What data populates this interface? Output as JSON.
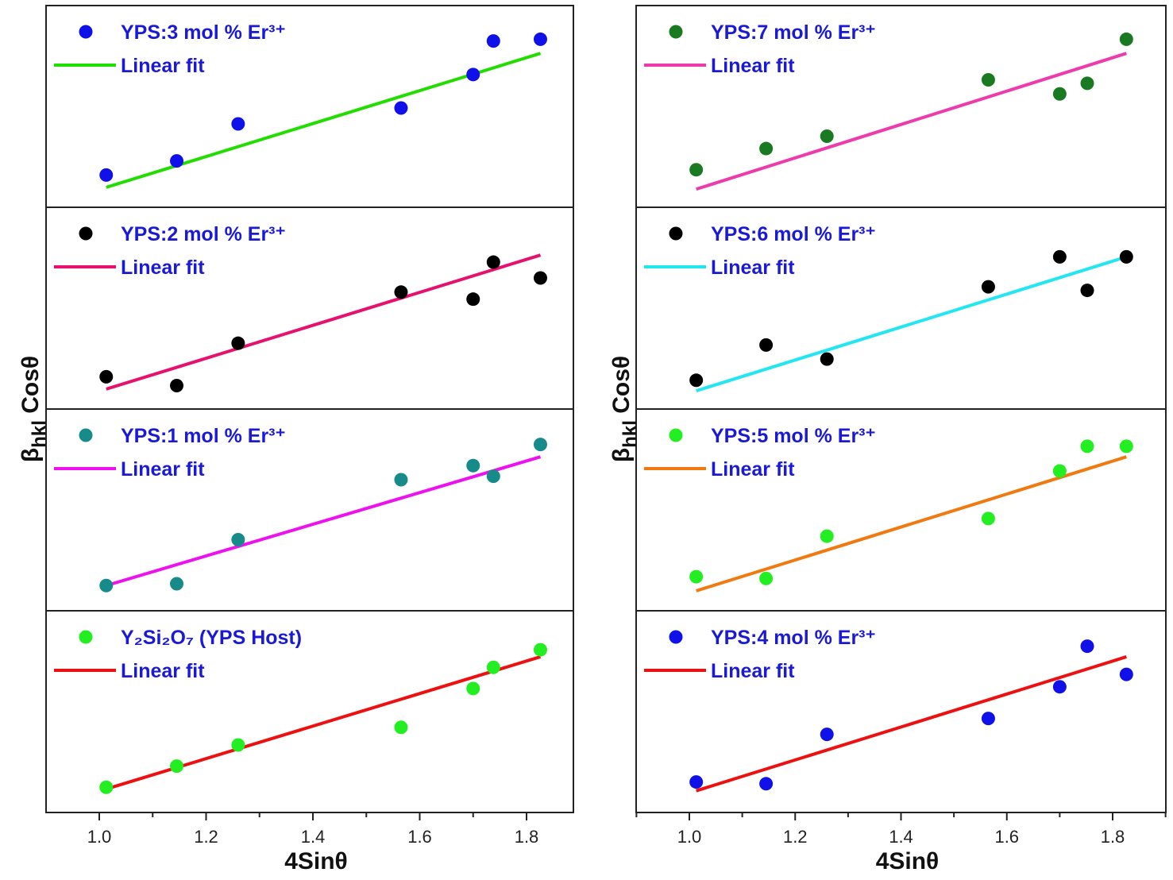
{
  "chart_data": [
    {
      "type": "scatter",
      "column": "left",
      "row": 0,
      "legend_position": "top-left",
      "series": [
        {
          "name": "YPS:3 mol % Er³⁺",
          "kind": "points",
          "color": "#1010e8",
          "x": [
            1.013,
            1.145,
            1.26,
            1.565,
            1.7,
            1.738,
            1.826
          ],
          "y": [
            0.12,
            0.2,
            0.41,
            0.5,
            0.69,
            0.88,
            0.89
          ]
        },
        {
          "name": "Linear fit",
          "kind": "line",
          "color": "#22dd00",
          "x": [
            1.013,
            1.826
          ],
          "y": [
            0.05,
            0.81
          ]
        }
      ],
      "ylim": [
        0,
        1
      ],
      "xlim": [
        0.9,
        1.9
      ]
    },
    {
      "type": "scatter",
      "column": "left",
      "row": 1,
      "legend_position": "top-left",
      "series": [
        {
          "name": "YPS:2 mol % Er³⁺",
          "kind": "points",
          "color": "#000000",
          "x": [
            1.013,
            1.145,
            1.26,
            1.565,
            1.7,
            1.738,
            1.826
          ],
          "y": [
            0.12,
            0.07,
            0.31,
            0.6,
            0.56,
            0.77,
            0.68
          ]
        },
        {
          "name": "Linear fit",
          "kind": "line",
          "color": "#e8106e",
          "x": [
            1.013,
            1.826
          ],
          "y": [
            0.05,
            0.81
          ]
        }
      ],
      "ylim": [
        0,
        1
      ],
      "xlim": [
        0.9,
        1.9
      ]
    },
    {
      "type": "scatter",
      "column": "left",
      "row": 2,
      "legend_position": "top-left",
      "series": [
        {
          "name": "YPS:1 mol % Er³⁺",
          "kind": "points",
          "color": "#178a8a",
          "x": [
            1.013,
            1.145,
            1.26,
            1.565,
            1.7,
            1.738,
            1.826
          ],
          "y": [
            0.08,
            0.09,
            0.34,
            0.68,
            0.76,
            0.7,
            0.88
          ]
        },
        {
          "name": "Linear fit",
          "kind": "line",
          "color": "#ee10ee",
          "x": [
            1.013,
            1.826
          ],
          "y": [
            0.08,
            0.81
          ]
        }
      ],
      "ylim": [
        0,
        1
      ],
      "xlim": [
        0.9,
        1.9
      ]
    },
    {
      "type": "scatter",
      "column": "left",
      "row": 3,
      "legend_position": "top-left",
      "series": [
        {
          "name": "Y₂Si₂O₇ (YPS Host)",
          "kind": "points",
          "color": "#22ee22",
          "x": [
            1.013,
            1.145,
            1.26,
            1.565,
            1.7,
            1.738,
            1.826
          ],
          "y": [
            0.08,
            0.2,
            0.32,
            0.42,
            0.64,
            0.76,
            0.86
          ]
        },
        {
          "name": "Linear fit",
          "kind": "line",
          "color": "#ee1010",
          "x": [
            1.013,
            1.826
          ],
          "y": [
            0.07,
            0.82
          ]
        }
      ],
      "ylim": [
        0,
        1
      ],
      "xlim": [
        0.9,
        1.9
      ]
    },
    {
      "type": "scatter",
      "column": "right",
      "row": 0,
      "legend_position": "top-left",
      "series": [
        {
          "name": "YPS:7 mol % Er³⁺",
          "kind": "points",
          "color": "#1a7a22",
          "x": [
            1.013,
            1.145,
            1.26,
            1.565,
            1.7,
            1.752,
            1.826
          ],
          "y": [
            0.15,
            0.27,
            0.34,
            0.66,
            0.58,
            0.64,
            0.89
          ]
        },
        {
          "name": "Linear fit",
          "kind": "line",
          "color": "#ee3aaa",
          "x": [
            1.013,
            1.826
          ],
          "y": [
            0.04,
            0.81
          ]
        }
      ],
      "ylim": [
        0,
        1
      ],
      "xlim": [
        0.9,
        1.9
      ]
    },
    {
      "type": "scatter",
      "column": "right",
      "row": 1,
      "legend_position": "top-left",
      "series": [
        {
          "name": "YPS:6 mol % Er³⁺",
          "kind": "points",
          "color": "#000000",
          "x": [
            1.013,
            1.145,
            1.26,
            1.565,
            1.7,
            1.752,
            1.826
          ],
          "y": [
            0.1,
            0.3,
            0.22,
            0.63,
            0.8,
            0.61,
            0.8
          ]
        },
        {
          "name": "Linear fit",
          "kind": "line",
          "color": "#22e6f0",
          "x": [
            1.013,
            1.826
          ],
          "y": [
            0.04,
            0.8
          ]
        }
      ],
      "ylim": [
        0,
        1
      ],
      "xlim": [
        0.9,
        1.9
      ]
    },
    {
      "type": "scatter",
      "column": "right",
      "row": 2,
      "legend_position": "top-left",
      "series": [
        {
          "name": "YPS:5 mol % Er³⁺",
          "kind": "points",
          "color": "#22ee22",
          "x": [
            1.013,
            1.145,
            1.26,
            1.565,
            1.7,
            1.752,
            1.826
          ],
          "y": [
            0.13,
            0.12,
            0.36,
            0.46,
            0.73,
            0.87,
            0.87
          ]
        },
        {
          "name": "Linear fit",
          "kind": "line",
          "color": "#f07a10",
          "x": [
            1.013,
            1.826
          ],
          "y": [
            0.05,
            0.81
          ]
        }
      ],
      "ylim": [
        0,
        1
      ],
      "xlim": [
        0.9,
        1.9
      ]
    },
    {
      "type": "scatter",
      "column": "right",
      "row": 3,
      "legend_position": "top-left",
      "series": [
        {
          "name": "YPS:4 mol % Er³⁺",
          "kind": "points",
          "color": "#1010e8",
          "x": [
            1.013,
            1.145,
            1.26,
            1.565,
            1.7,
            1.752,
            1.826
          ],
          "y": [
            0.11,
            0.1,
            0.38,
            0.47,
            0.65,
            0.88,
            0.72
          ]
        },
        {
          "name": "Linear fit",
          "kind": "line",
          "color": "#ee1010",
          "x": [
            1.013,
            1.826
          ],
          "y": [
            0.06,
            0.82
          ]
        }
      ],
      "ylim": [
        0,
        1
      ],
      "xlim": [
        0.9,
        1.9
      ]
    }
  ],
  "axes": {
    "xlabel": "4Sinθ",
    "ylabel_main": "β",
    "ylabel_sub": "hkl",
    "ylabel_rest": " Cosθ",
    "xticks": [
      1.0,
      1.2,
      1.4,
      1.6,
      1.8
    ],
    "xtick_labels": [
      "1.0",
      "1.2",
      "1.4",
      "1.6",
      "1.8"
    ]
  }
}
